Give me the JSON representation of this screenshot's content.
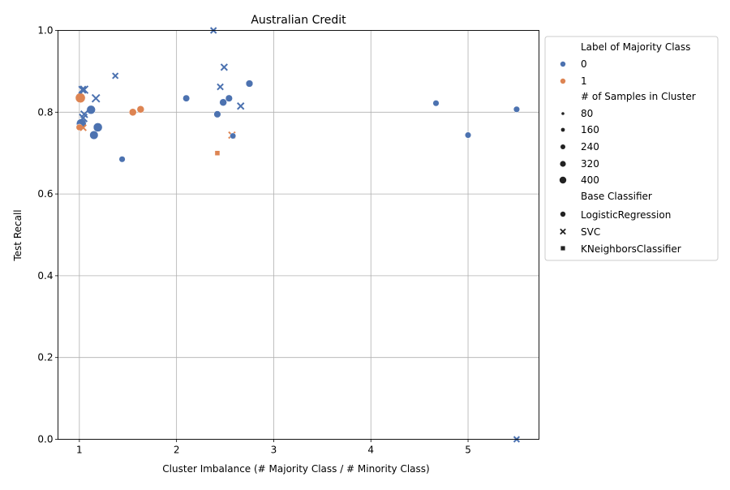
{
  "chart_data": {
    "type": "scatter",
    "title": "Australian Credit",
    "xlabel": "Cluster Imbalance (# Majority Class / # Minority Class)",
    "ylabel": "Test Recall",
    "xlim": [
      0.78,
      5.73
    ],
    "ylim": [
      0,
      1.0
    ],
    "xticks": [
      1,
      2,
      3,
      4,
      5
    ],
    "yticks": [
      0.0,
      0.2,
      0.4,
      0.6,
      0.8,
      1.0
    ],
    "grid": true,
    "colors": {
      "0": "#4c72b0",
      "1": "#dd8452"
    },
    "legend": {
      "placement": "outside-right",
      "hue_title": "Label of Majority Class",
      "hue_entries": [
        "0",
        "1"
      ],
      "size_title": "# of Samples in Cluster",
      "size_entries": [
        "80",
        "160",
        "240",
        "320",
        "400"
      ],
      "style_title": "Base Classifier",
      "style_entries": [
        "LogisticRegression",
        "SVC",
        "KNeighborsClassifier"
      ]
    },
    "points": [
      {
        "x": 1.01,
        "y": 0.835,
        "label": "1",
        "samples": 420,
        "clf": "LogisticRegression"
      },
      {
        "x": 1.02,
        "y": 0.772,
        "label": "0",
        "samples": 400,
        "clf": "LogisticRegression"
      },
      {
        "x": 1.12,
        "y": 0.806,
        "label": "0",
        "samples": 300,
        "clf": "LogisticRegression"
      },
      {
        "x": 1.19,
        "y": 0.763,
        "label": "0",
        "samples": 320,
        "clf": "LogisticRegression"
      },
      {
        "x": 1.15,
        "y": 0.744,
        "label": "0",
        "samples": 280,
        "clf": "LogisticRegression"
      },
      {
        "x": 1.0,
        "y": 0.763,
        "label": "1",
        "samples": 120,
        "clf": "LogisticRegression"
      },
      {
        "x": 1.04,
        "y": 0.762,
        "label": "1",
        "samples": 100,
        "clf": "SVC"
      },
      {
        "x": 1.03,
        "y": 0.855,
        "label": "0",
        "samples": 180,
        "clf": "SVC"
      },
      {
        "x": 1.05,
        "y": 0.855,
        "label": "0",
        "samples": 220,
        "clf": "SVC"
      },
      {
        "x": 1.04,
        "y": 0.786,
        "label": "0",
        "samples": 240,
        "clf": "SVC"
      },
      {
        "x": 1.05,
        "y": 0.795,
        "label": "0",
        "samples": 160,
        "clf": "SVC"
      },
      {
        "x": 1.17,
        "y": 0.834,
        "label": "0",
        "samples": 220,
        "clf": "SVC"
      },
      {
        "x": 1.37,
        "y": 0.889,
        "label": "0",
        "samples": 80,
        "clf": "SVC"
      },
      {
        "x": 1.44,
        "y": 0.685,
        "label": "0",
        "samples": 100,
        "clf": "LogisticRegression"
      },
      {
        "x": 1.55,
        "y": 0.8,
        "label": "1",
        "samples": 180,
        "clf": "LogisticRegression"
      },
      {
        "x": 1.63,
        "y": 0.807,
        "label": "1",
        "samples": 170,
        "clf": "LogisticRegression"
      },
      {
        "x": 2.1,
        "y": 0.834,
        "label": "0",
        "samples": 140,
        "clf": "LogisticRegression"
      },
      {
        "x": 2.38,
        "y": 1.0,
        "label": "0",
        "samples": 90,
        "clf": "SVC"
      },
      {
        "x": 2.42,
        "y": 0.7,
        "label": "1",
        "samples": 80,
        "clf": "KNeighborsClassifier"
      },
      {
        "x": 2.42,
        "y": 0.795,
        "label": "0",
        "samples": 150,
        "clf": "LogisticRegression"
      },
      {
        "x": 2.45,
        "y": 0.862,
        "label": "0",
        "samples": 100,
        "clf": "SVC"
      },
      {
        "x": 2.49,
        "y": 0.91,
        "label": "0",
        "samples": 130,
        "clf": "SVC"
      },
      {
        "x": 2.48,
        "y": 0.824,
        "label": "0",
        "samples": 170,
        "clf": "LogisticRegression"
      },
      {
        "x": 2.54,
        "y": 0.834,
        "label": "0",
        "samples": 150,
        "clf": "LogisticRegression"
      },
      {
        "x": 2.57,
        "y": 0.744,
        "label": "1",
        "samples": 140,
        "clf": "SVC"
      },
      {
        "x": 2.58,
        "y": 0.742,
        "label": "0",
        "samples": 90,
        "clf": "LogisticRegression"
      },
      {
        "x": 2.66,
        "y": 0.815,
        "label": "0",
        "samples": 140,
        "clf": "SVC"
      },
      {
        "x": 2.75,
        "y": 0.87,
        "label": "0",
        "samples": 160,
        "clf": "LogisticRegression"
      },
      {
        "x": 4.67,
        "y": 0.822,
        "label": "0",
        "samples": 100,
        "clf": "LogisticRegression"
      },
      {
        "x": 5.0,
        "y": 0.744,
        "label": "0",
        "samples": 100,
        "clf": "LogisticRegression"
      },
      {
        "x": 5.5,
        "y": 0.807,
        "label": "0",
        "samples": 100,
        "clf": "LogisticRegression"
      },
      {
        "x": 5.5,
        "y": 0.0,
        "label": "0",
        "samples": 80,
        "clf": "SVC"
      }
    ]
  }
}
